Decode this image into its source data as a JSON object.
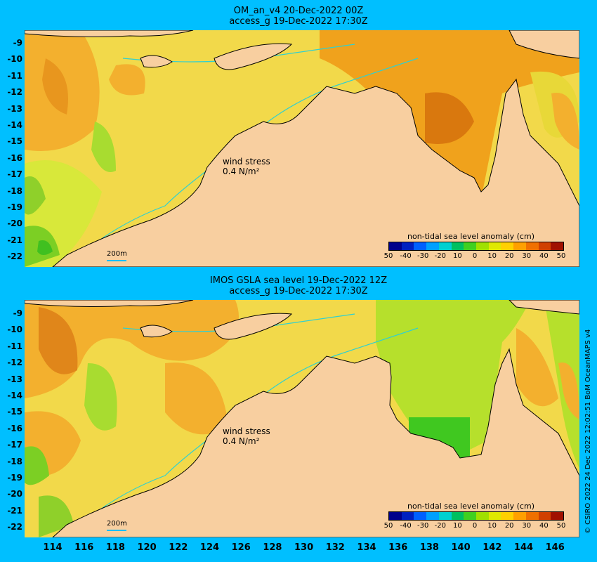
{
  "panels": [
    {
      "title_line1": "OM_an_v4  20-Dec-2022 00Z",
      "title_line2": "access_g 19-Dec-2022 17:30Z",
      "wind_label": "wind stress",
      "wind_value": "0.4 N/m²",
      "scale_label": "200m",
      "colorbar_title": "non-tidal sea level anomaly (cm)"
    },
    {
      "title_line1": "IMOS GSLA sea level  19-Dec-2022 12Z",
      "title_line2": "access_g 19-Dec-2022 17:30Z",
      "wind_label": "wind stress",
      "wind_value": "0.4 N/m²",
      "scale_label": "200m",
      "colorbar_title": "non-tidal sea level anomaly (cm)"
    }
  ],
  "y_ticks": [
    "-9",
    "-10",
    "-11",
    "-12",
    "-13",
    "-14",
    "-15",
    "-16",
    "-17",
    "-18",
    "-19",
    "-20",
    "-21",
    "-22"
  ],
  "x_ticks": [
    "114",
    "116",
    "118",
    "120",
    "122",
    "124",
    "126",
    "128",
    "130",
    "132",
    "134",
    "136",
    "138",
    "140",
    "142",
    "144",
    "146"
  ],
  "colorbar_ticks": [
    "50",
    "-40",
    "-30",
    "-20",
    "10",
    "0",
    "10",
    "20",
    "30",
    "40",
    "50"
  ],
  "colorbar_colors": [
    "#00008b",
    "#0020c0",
    "#0060ff",
    "#00a0ff",
    "#00d0d0",
    "#00c060",
    "#40d020",
    "#a0e000",
    "#e0e800",
    "#ffd000",
    "#ffa000",
    "#f07000",
    "#d04000",
    "#a01000"
  ],
  "credit": "© CSIRO 2022   24 Dec 2022 12:02:51 BoM OceanMAPS v4",
  "colors": {
    "background": "#00bfff",
    "land": "#f8cfa0",
    "contour": "#30d0d0"
  }
}
